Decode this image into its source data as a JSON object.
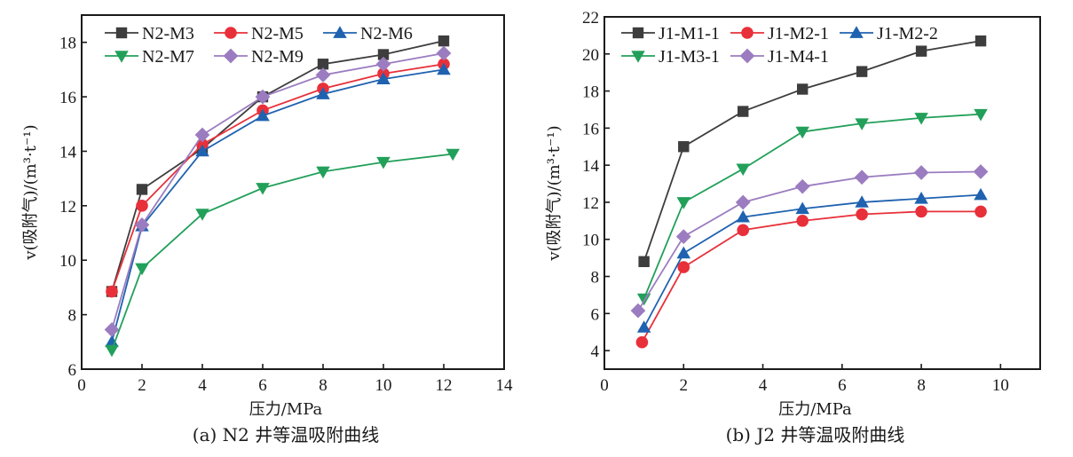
{
  "chart_data": [
    {
      "type": "line",
      "title": "",
      "caption": "(a) N2 井等温吸附曲线",
      "xlabel": "压力/MPa",
      "ylabel": "v(吸附气)/(m³·t⁻¹)",
      "xlim": [
        0,
        14
      ],
      "ylim": [
        6,
        19
      ],
      "xticks": [
        0,
        2,
        4,
        6,
        8,
        10,
        12,
        14
      ],
      "yticks": [
        6,
        8,
        10,
        12,
        14,
        16,
        18
      ],
      "grid": false,
      "legend_position": "top-left",
      "legend_columns": 3,
      "series": [
        {
          "name": "N2-M3",
          "color": "#3d3d3d",
          "marker": "square",
          "x": [
            1,
            2,
            4,
            6,
            8,
            10,
            12
          ],
          "y": [
            8.85,
            12.6,
            14.1,
            16.0,
            17.2,
            17.55,
            18.05
          ]
        },
        {
          "name": "N2-M5",
          "color": "#e8303a",
          "marker": "circle",
          "x": [
            1,
            2,
            4,
            6,
            8,
            10,
            12
          ],
          "y": [
            8.85,
            12.0,
            14.25,
            15.5,
            16.3,
            16.85,
            17.2
          ]
        },
        {
          "name": "N2-M6",
          "color": "#1f62b0",
          "marker": "triangle-up",
          "x": [
            1,
            2,
            4,
            6,
            8,
            10,
            12
          ],
          "y": [
            7.0,
            11.25,
            14.0,
            15.3,
            16.1,
            16.65,
            17.0
          ]
        },
        {
          "name": "N2-M7",
          "color": "#22a05a",
          "marker": "triangle-down",
          "x": [
            1,
            2,
            4,
            6,
            8,
            10,
            12.3
          ],
          "y": [
            6.7,
            9.7,
            11.7,
            12.65,
            13.25,
            13.6,
            13.9
          ]
        },
        {
          "name": "N2-M9",
          "color": "#9b7cc0",
          "marker": "diamond",
          "x": [
            1,
            2,
            4,
            6,
            8,
            10,
            12
          ],
          "y": [
            7.45,
            11.3,
            14.6,
            16.0,
            16.8,
            17.2,
            17.6
          ]
        }
      ]
    },
    {
      "type": "line",
      "title": "",
      "caption": "(b) J2 井等温吸附曲线",
      "xlabel": "压力/MPa",
      "ylabel": "v(吸附气)/(m³·t⁻¹)",
      "xlim": [
        0,
        11
      ],
      "ylim": [
        3,
        22
      ],
      "xticks": [
        0,
        2,
        4,
        6,
        8,
        10
      ],
      "yticks": [
        4,
        6,
        8,
        10,
        12,
        14,
        16,
        18,
        20,
        22
      ],
      "grid": false,
      "legend_position": "top-left",
      "legend_columns": 3,
      "series": [
        {
          "name": "J1-M1-1",
          "color": "#3d3d3d",
          "marker": "square",
          "x": [
            1,
            2,
            3.5,
            5,
            6.5,
            8,
            9.5
          ],
          "y": [
            8.8,
            15.0,
            16.9,
            18.1,
            19.05,
            20.15,
            20.7
          ]
        },
        {
          "name": "J1-M2-1",
          "color": "#e8303a",
          "marker": "circle",
          "x": [
            0.95,
            2,
            3.5,
            5,
            6.5,
            8,
            9.5
          ],
          "y": [
            4.45,
            8.5,
            10.5,
            11.0,
            11.35,
            11.5,
            11.5
          ]
        },
        {
          "name": "J1-M2-2",
          "color": "#1f62b0",
          "marker": "triangle-up",
          "x": [
            1,
            2,
            3.5,
            5,
            6.5,
            8,
            9.5
          ],
          "y": [
            5.25,
            9.25,
            11.2,
            11.65,
            12.0,
            12.2,
            12.4
          ]
        },
        {
          "name": "J1-M3-1",
          "color": "#22a05a",
          "marker": "triangle-down",
          "x": [
            1,
            2,
            3.5,
            5,
            6.5,
            8,
            9.5
          ],
          "y": [
            6.8,
            12.0,
            13.8,
            15.8,
            16.25,
            16.55,
            16.75
          ]
        },
        {
          "name": "J1-M4-1",
          "color": "#9b7cc0",
          "marker": "diamond",
          "x": [
            0.85,
            2,
            3.5,
            5,
            6.5,
            8,
            9.5
          ],
          "y": [
            6.15,
            10.15,
            12.0,
            12.85,
            13.35,
            13.6,
            13.65
          ]
        }
      ]
    }
  ]
}
